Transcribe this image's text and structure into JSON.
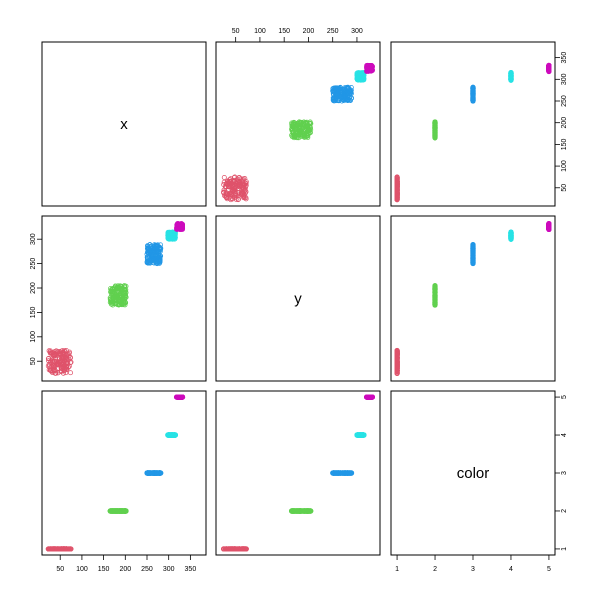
{
  "chart_data": {
    "type": "scatter",
    "variables": [
      "x",
      "y",
      "color"
    ],
    "colors": {
      "1": "#DF536B",
      "2": "#61D04F",
      "3": "#2297E6",
      "4": "#28E2E5",
      "5": "#CD0BBC"
    },
    "groups": [
      {
        "color": 1,
        "x": [
          22,
          75
        ],
        "y": [
          25,
          72
        ]
      },
      {
        "color": 2,
        "x": [
          165,
          202
        ],
        "y": [
          165,
          205
        ]
      },
      {
        "color": 3,
        "x": [
          250,
          282
        ],
        "y": [
          250,
          290
        ]
      },
      {
        "color": 4,
        "x": [
          298,
          316
        ],
        "y": [
          300,
          315
        ]
      },
      {
        "color": 5,
        "x": [
          318,
          332
        ],
        "y": [
          320,
          332
        ]
      }
    ],
    "axis_ranges": {
      "x": [
        22,
        372
      ],
      "y": [
        22,
        335
      ],
      "color": [
        1,
        5
      ]
    },
    "top_axis": {
      "variable": "y",
      "ticks": [
        "50",
        "100",
        "150",
        "200",
        "250",
        "300"
      ]
    },
    "right_axis_top": {
      "variable": "x",
      "ticks": [
        "50",
        "100",
        "150",
        "200",
        "250",
        "300",
        "350"
      ]
    },
    "left_axis_middle": {
      "variable": "y",
      "ticks": [
        "50",
        "100",
        "150",
        "200",
        "250",
        "300"
      ]
    },
    "bottom_axis": {
      "variable": "x",
      "ticks": [
        "50",
        "100",
        "150",
        "200",
        "250",
        "300",
        "350"
      ]
    },
    "bottom_axis_right": {
      "variable": "color",
      "ticks": [
        "1",
        "2",
        "3",
        "4",
        "5"
      ]
    },
    "right_axis_bottom": {
      "variable": "color",
      "ticks": [
        "1",
        "2",
        "3",
        "4",
        "5"
      ]
    },
    "grid": false,
    "legend": "none"
  }
}
